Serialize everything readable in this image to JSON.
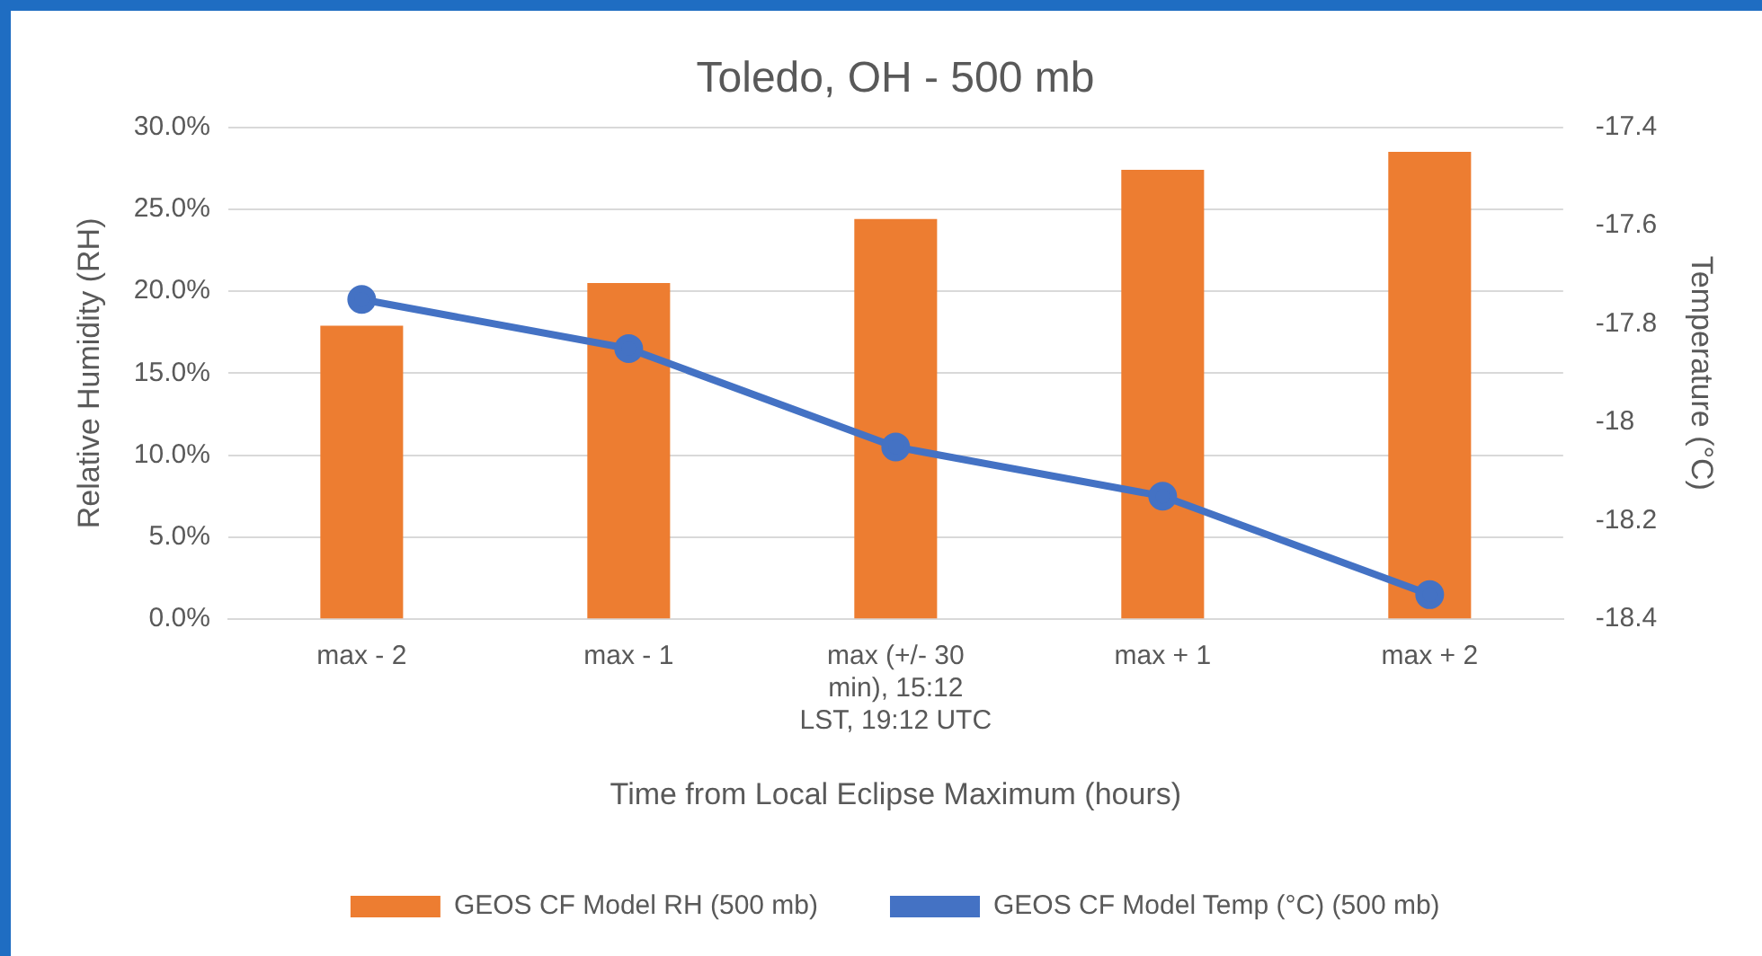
{
  "chart_data": {
    "type": "bar",
    "title": "Toledo, OH - 500 mb",
    "xlabel": "Time from Local Eclipse Maximum (hours)",
    "ylabel": "Relative Humidity (RH)",
    "y2label": "Temperature (°C)",
    "categories": [
      "max - 2",
      "max - 1",
      "max (+/- 30 min), 15:12 LST, 19:12 UTC",
      "max + 1",
      "max + 2"
    ],
    "series": [
      {
        "name": "GEOS CF Model RH (500 mb)",
        "color": "#ed7d31",
        "values": [
          17.9,
          20.5,
          24.4,
          27.4,
          28.5
        ]
      },
      {
        "name": "GEOS CF Model Temp (°C) (500 mb)",
        "type": "line",
        "axis": "y2",
        "color": "#4472c4",
        "marker": "circle",
        "values": [
          -17.75,
          -17.85,
          -18.05,
          -18.15,
          -18.35
        ]
      }
    ],
    "ylim": [
      0,
      30
    ],
    "yticks": [
      {
        "value": 0,
        "label": "0.0%"
      },
      {
        "value": 5,
        "label": "5.0%"
      },
      {
        "value": 10,
        "label": "10.0%"
      },
      {
        "value": 15,
        "label": "15.0%"
      },
      {
        "value": 20,
        "label": "20.0%"
      },
      {
        "value": 25,
        "label": "25.0%"
      },
      {
        "value": 30,
        "label": "30.0%"
      }
    ],
    "y2lim": [
      -18.4,
      -17.4
    ],
    "y2ticks": [
      -18.4,
      -18.2,
      -18,
      -17.8,
      -17.6,
      -17.4
    ],
    "grid": "y",
    "legend": "bottom"
  }
}
